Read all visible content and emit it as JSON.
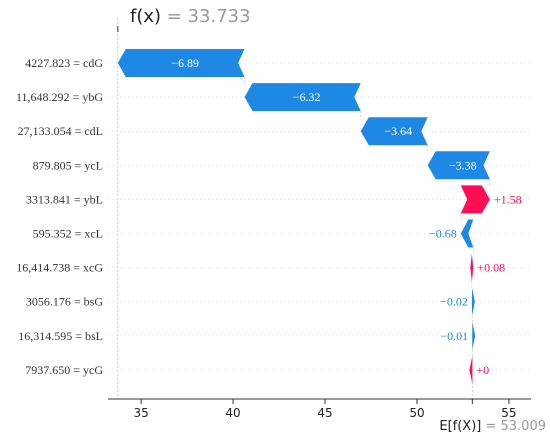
{
  "chart_data": {
    "type": "bar",
    "subtype": "shap-waterfall",
    "fx_label": "f(x)",
    "fx_value": "= 33.733",
    "efx_label": "E[f(X)]",
    "efx_value": "= 53.009",
    "base_value": 53.009,
    "final_value": 33.733,
    "xlim": [
      33.2,
      56.2
    ],
    "xticks": [
      35,
      40,
      45,
      50,
      55
    ],
    "colors": {
      "negative": "#1e88e5",
      "positive": "#ff0d57",
      "fx_text": "#222222",
      "value_text": "#999999",
      "guide": "#bbbbbb",
      "grid": "#cccccc"
    },
    "features": [
      {
        "label": "4227.823 = cdG",
        "contribution": -6.89,
        "text": "−6.89"
      },
      {
        "label": "11,648.292 = ybG",
        "contribution": -6.32,
        "text": "−6.32"
      },
      {
        "label": "27,133.054 = cdL",
        "contribution": -3.64,
        "text": "−3.64"
      },
      {
        "label": "879.805 = ycL",
        "contribution": -3.38,
        "text": "−3.38"
      },
      {
        "label": "3313.841 = ybL",
        "contribution": 1.58,
        "text": "+1.58"
      },
      {
        "label": "595.352 = xcL",
        "contribution": -0.68,
        "text": "−0.68"
      },
      {
        "label": "16,414.738 = xcG",
        "contribution": 0.08,
        "text": "+0.08"
      },
      {
        "label": "3056.176 = bsG",
        "contribution": -0.02,
        "text": "−0.02"
      },
      {
        "label": "16,314.595 = bsL",
        "contribution": -0.01,
        "text": "−0.01"
      },
      {
        "label": "7937.650 = ycG",
        "contribution": 0.0,
        "text": "+0"
      }
    ]
  }
}
